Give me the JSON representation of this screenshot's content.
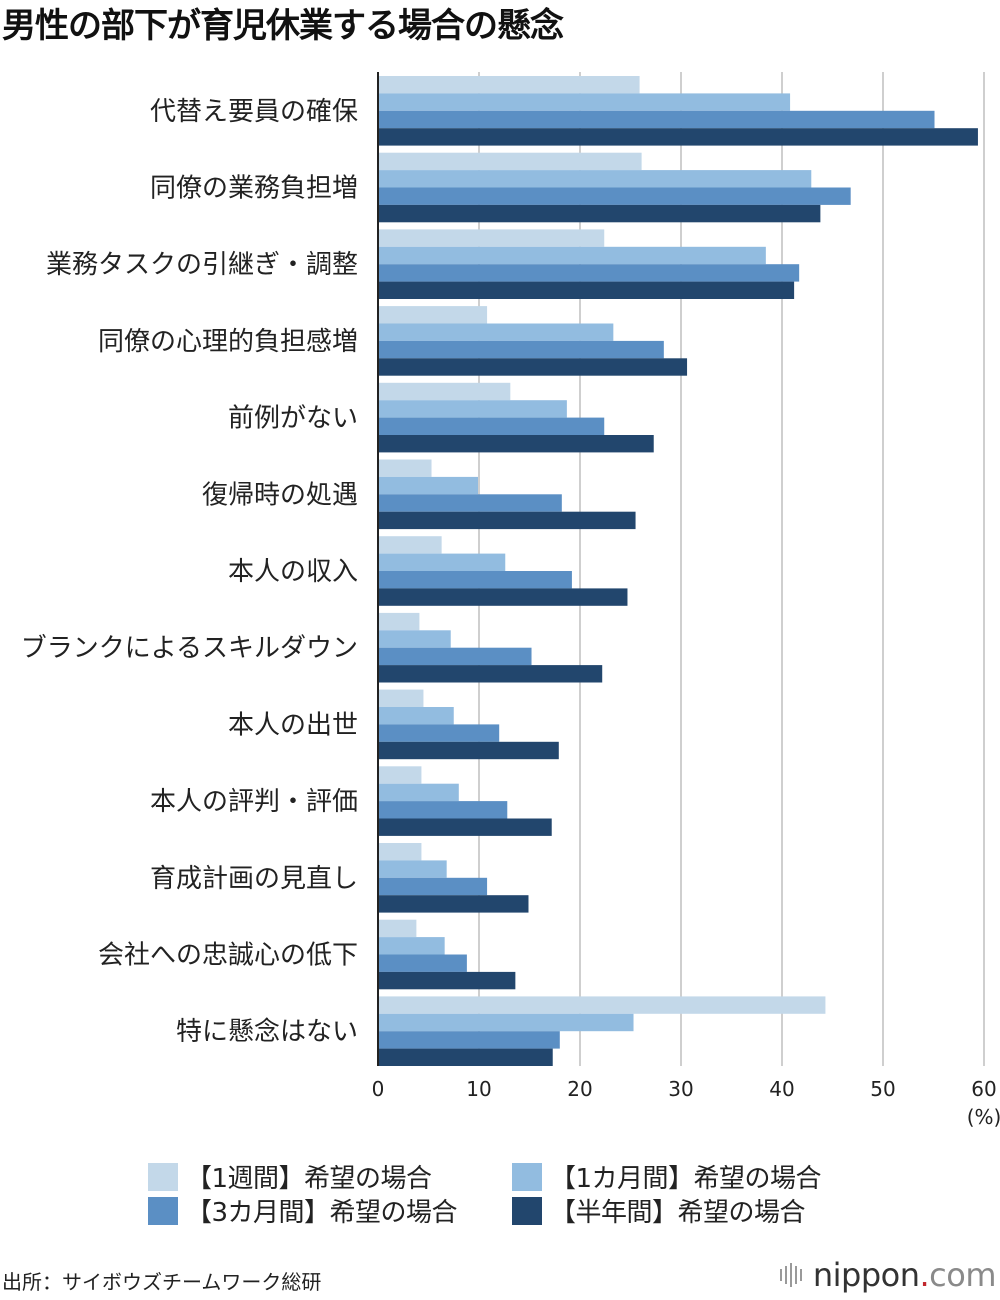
{
  "title": "男性の部下が育児休業する場合の懸念",
  "chart_data": {
    "type": "bar",
    "orientation": "horizontal",
    "categories": [
      "代替え要員の確保",
      "同僚の業務負担増",
      "業務タスクの引継ぎ・調整",
      "同僚の心理的負担感増",
      "前例がない",
      "復帰時の処遇",
      "本人の収入",
      "ブランクによるスキルダウン",
      "本人の出世",
      "本人の評判・評価",
      "育成計画の見直し",
      "会社への忠誠心の低下",
      "特に懸念はない"
    ],
    "series": [
      {
        "name": "【1週間】希望の場合",
        "color": "#c3d8e9",
        "values": [
          25.9,
          26.1,
          22.4,
          10.8,
          13.1,
          5.3,
          6.3,
          4.1,
          4.5,
          4.3,
          4.3,
          3.8,
          44.3
        ]
      },
      {
        "name": "【1カ月間】希望の場合",
        "color": "#92bce0",
        "values": [
          40.8,
          42.9,
          38.4,
          23.3,
          18.7,
          9.9,
          12.6,
          7.2,
          7.5,
          8.0,
          6.8,
          6.6,
          25.3
        ]
      },
      {
        "name": "【3カ月間】希望の場合",
        "color": "#5b8fc4",
        "values": [
          55.1,
          46.8,
          41.7,
          28.3,
          22.4,
          18.2,
          19.2,
          15.2,
          12.0,
          12.8,
          10.8,
          8.8,
          18.0
        ]
      },
      {
        "name": "【半年間】希望の場合",
        "color": "#22466d",
        "values": [
          59.4,
          43.8,
          41.2,
          30.6,
          27.3,
          25.5,
          24.7,
          22.2,
          17.9,
          17.2,
          14.9,
          13.6,
          17.3
        ]
      }
    ],
    "xlim": [
      0,
      60
    ],
    "x_ticks": [
      0,
      10,
      20,
      30,
      40,
      50,
      60
    ],
    "unit_label": "(%)",
    "grid": "vertical",
    "legend": "bottom"
  },
  "legend": {
    "items": [
      {
        "label": "【1週間】希望の場合",
        "color": "#c3d8e9"
      },
      {
        "label": "【1カ月間】希望の場合",
        "color": "#92bce0"
      },
      {
        "label": "【3カ月間】希望の場合",
        "color": "#5b8fc4"
      },
      {
        "label": "【半年間】希望の場合",
        "color": "#22466d"
      }
    ]
  },
  "source": "出所：サイボウズチームワーク総研",
  "logo": {
    "name": "nippon",
    "dot": ".",
    "tld": "com"
  }
}
